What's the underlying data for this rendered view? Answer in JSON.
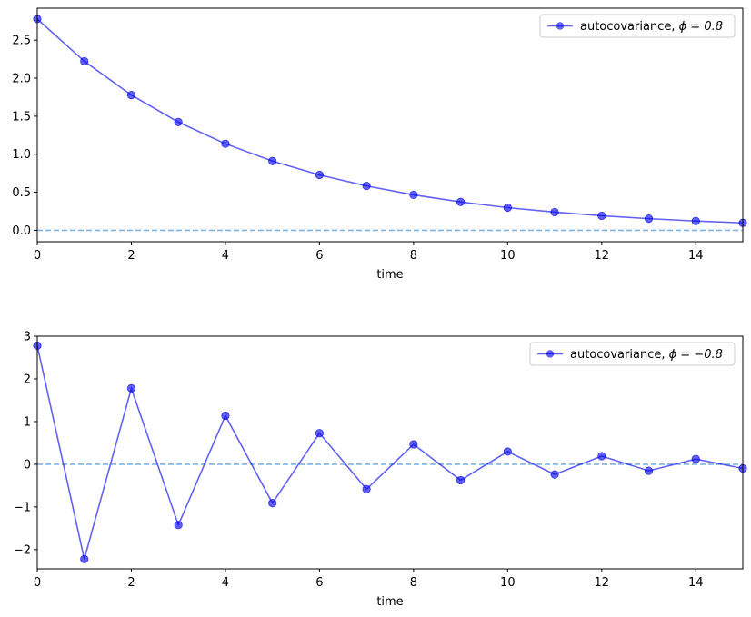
{
  "chart_data": [
    {
      "type": "line",
      "xlabel": "time",
      "ylabel": "",
      "xlim": [
        0,
        15
      ],
      "ylim": [
        -0.15,
        2.92
      ],
      "xticks": [
        0,
        2,
        4,
        6,
        8,
        10,
        12,
        14
      ],
      "yticks": [
        0.0,
        0.5,
        1.0,
        1.5,
        2.0,
        2.5
      ],
      "ytick_labels": [
        "0.0",
        "0.5",
        "1.0",
        "1.5",
        "2.0",
        "2.5"
      ],
      "legend": {
        "label": "autocovariance, ",
        "phi": "ϕ = 0.8",
        "position": "top-right"
      },
      "reference_line": {
        "y": 0,
        "style": "dashed"
      },
      "series": [
        {
          "x": [
            0,
            1,
            2,
            3,
            4,
            5,
            6,
            7,
            8,
            9,
            10,
            11,
            12,
            13,
            14,
            15
          ],
          "values": [
            2.778,
            2.222,
            1.778,
            1.422,
            1.138,
            0.91,
            0.728,
            0.583,
            0.466,
            0.373,
            0.298,
            0.239,
            0.191,
            0.153,
            0.122,
            0.098
          ]
        }
      ],
      "color": "#0000ee"
    },
    {
      "type": "line",
      "xlabel": "time",
      "ylabel": "",
      "xlim": [
        0,
        15
      ],
      "ylim": [
        -2.45,
        3.0
      ],
      "xticks": [
        0,
        2,
        4,
        6,
        8,
        10,
        12,
        14
      ],
      "yticks": [
        -2,
        -1,
        0,
        1,
        2,
        3
      ],
      "ytick_labels": [
        "−2",
        "−1",
        "0",
        "1",
        "2",
        "3"
      ],
      "legend": {
        "label": "autocovariance, ",
        "phi": "ϕ = −0.8",
        "position": "top-right"
      },
      "reference_line": {
        "y": 0,
        "style": "dashed"
      },
      "series": [
        {
          "x": [
            0,
            1,
            2,
            3,
            4,
            5,
            6,
            7,
            8,
            9,
            10,
            11,
            12,
            13,
            14,
            15
          ],
          "values": [
            2.778,
            -2.222,
            1.778,
            -1.422,
            1.138,
            -0.91,
            0.728,
            -0.583,
            0.466,
            -0.373,
            0.298,
            -0.239,
            0.191,
            -0.153,
            0.122,
            -0.098
          ]
        }
      ],
      "color": "#0000ee"
    }
  ]
}
